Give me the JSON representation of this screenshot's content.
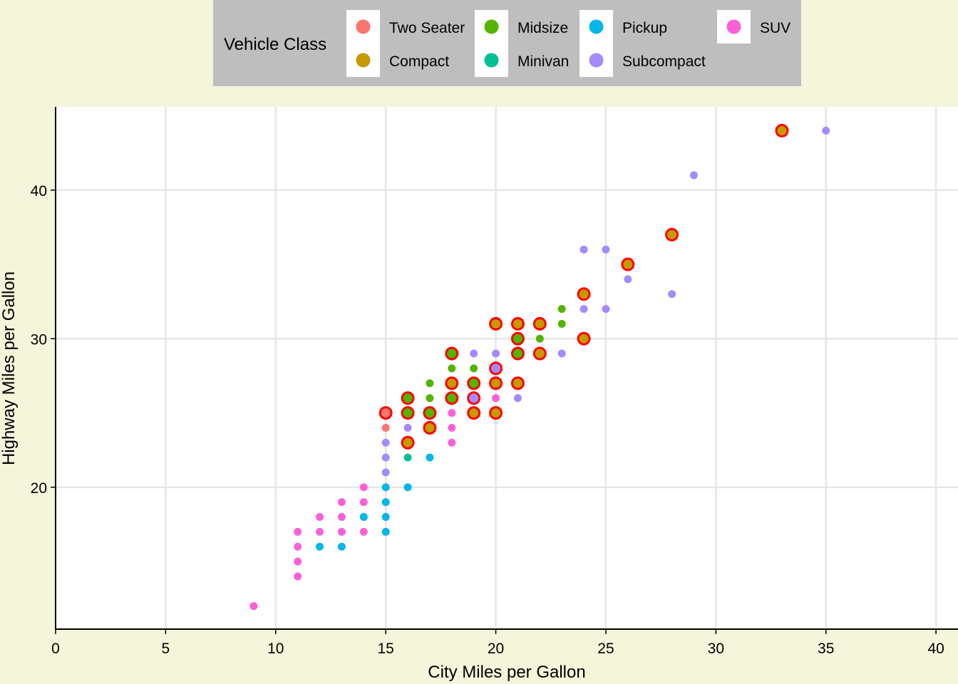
{
  "chart_data": {
    "type": "scatter",
    "xlabel": "City Miles per Gallon",
    "ylabel": "Highway Miles per Gallon",
    "xlim": [
      0,
      41
    ],
    "ylim": [
      10.45,
      45.6
    ],
    "xticks": [
      0,
      5,
      10,
      15,
      20,
      25,
      30,
      35,
      40
    ],
    "yticks": [
      20,
      30,
      40
    ],
    "grid": true,
    "legend": {
      "title": "Vehicle Class",
      "placement": "top",
      "entries": [
        {
          "key": "2seater",
          "label": "Two Seater",
          "color": "#F8766D"
        },
        {
          "key": "compact",
          "label": "Compact",
          "color": "#C49A00"
        },
        {
          "key": "midsize",
          "label": "Midsize",
          "color": "#53B400"
        },
        {
          "key": "minivan",
          "label": "Minivan",
          "color": "#00C094"
        },
        {
          "key": "pickup",
          "label": "Pickup",
          "color": "#00B6EB"
        },
        {
          "key": "subcompact",
          "label": "Subcompact",
          "color": "#A58AFF"
        },
        {
          "key": "suv",
          "label": "SUV",
          "color": "#FB61D7"
        }
      ]
    },
    "highlight_color": "#FF0000",
    "points": [
      [
        9,
        12,
        "suv",
        0
      ],
      [
        11,
        17,
        "suv",
        0
      ],
      [
        11,
        16,
        "suv",
        0
      ],
      [
        11,
        15,
        "suv",
        0
      ],
      [
        11,
        14,
        "suv",
        0
      ],
      [
        12,
        18,
        "suv",
        0
      ],
      [
        12,
        17,
        "suv",
        0
      ],
      [
        12,
        16,
        "pickup",
        0
      ],
      [
        13,
        19,
        "suv",
        0
      ],
      [
        13,
        18,
        "suv",
        0
      ],
      [
        13,
        17,
        "pickup",
        0
      ],
      [
        13,
        17,
        "suv",
        0
      ],
      [
        13,
        16,
        "pickup",
        0
      ],
      [
        14,
        20,
        "suv",
        0
      ],
      [
        14,
        19,
        "suv",
        0
      ],
      [
        14,
        18,
        "pickup",
        0
      ],
      [
        14,
        17,
        "suv",
        0
      ],
      [
        15,
        20,
        "pickup",
        0
      ],
      [
        15,
        19,
        "pickup",
        0
      ],
      [
        15,
        18,
        "pickup",
        0
      ],
      [
        15,
        17,
        "pickup",
        0
      ],
      [
        15,
        21,
        "subcompact",
        0
      ],
      [
        15,
        22,
        "subcompact",
        0
      ],
      [
        15,
        23,
        "subcompact",
        0
      ],
      [
        15,
        24,
        "2seater",
        0
      ],
      [
        15,
        25,
        "2seater",
        1
      ],
      [
        16,
        20,
        "pickup",
        0
      ],
      [
        16,
        22,
        "minivan",
        0
      ],
      [
        16,
        23,
        "compact",
        1
      ],
      [
        16,
        24,
        "subcompact",
        0
      ],
      [
        16,
        25,
        "midsize",
        1
      ],
      [
        16,
        26,
        "midsize",
        1
      ],
      [
        17,
        22,
        "pickup",
        0
      ],
      [
        17,
        24,
        "compact",
        1
      ],
      [
        17,
        25,
        "midsize",
        1
      ],
      [
        17,
        26,
        "midsize",
        0
      ],
      [
        17,
        27,
        "midsize",
        0
      ],
      [
        18,
        23,
        "suv",
        0
      ],
      [
        18,
        24,
        "suv",
        0
      ],
      [
        18,
        25,
        "suv",
        0
      ],
      [
        18,
        26,
        "midsize",
        1
      ],
      [
        18,
        27,
        "compact",
        1
      ],
      [
        18,
        28,
        "midsize",
        0
      ],
      [
        18,
        29,
        "midsize",
        1
      ],
      [
        19,
        25,
        "compact",
        1
      ],
      [
        19,
        26,
        "subcompact",
        1
      ],
      [
        19,
        27,
        "midsize",
        1
      ],
      [
        19,
        28,
        "midsize",
        0
      ],
      [
        19,
        29,
        "subcompact",
        0
      ],
      [
        20,
        25,
        "compact",
        1
      ],
      [
        20,
        26,
        "suv",
        0
      ],
      [
        20,
        27,
        "compact",
        1
      ],
      [
        20,
        28,
        "subcompact",
        1
      ],
      [
        20,
        29,
        "subcompact",
        0
      ],
      [
        20,
        31,
        "compact",
        1
      ],
      [
        21,
        26,
        "subcompact",
        0
      ],
      [
        21,
        27,
        "compact",
        1
      ],
      [
        21,
        29,
        "midsize",
        1
      ],
      [
        21,
        30,
        "midsize",
        1
      ],
      [
        21,
        31,
        "compact",
        1
      ],
      [
        22,
        29,
        "compact",
        1
      ],
      [
        22,
        30,
        "midsize",
        0
      ],
      [
        22,
        31,
        "compact",
        1
      ],
      [
        23,
        29,
        "subcompact",
        0
      ],
      [
        23,
        31,
        "midsize",
        0
      ],
      [
        23,
        32,
        "midsize",
        0
      ],
      [
        24,
        30,
        "compact",
        1
      ],
      [
        24,
        32,
        "subcompact",
        0
      ],
      [
        24,
        33,
        "compact",
        1
      ],
      [
        24,
        36,
        "subcompact",
        0
      ],
      [
        25,
        32,
        "subcompact",
        0
      ],
      [
        25,
        36,
        "subcompact",
        0
      ],
      [
        26,
        34,
        "subcompact",
        0
      ],
      [
        26,
        35,
        "compact",
        1
      ],
      [
        28,
        33,
        "subcompact",
        0
      ],
      [
        28,
        37,
        "compact",
        1
      ],
      [
        29,
        41,
        "subcompact",
        0
      ],
      [
        33,
        44,
        "compact",
        1
      ],
      [
        35,
        44,
        "subcompact",
        0
      ]
    ]
  }
}
